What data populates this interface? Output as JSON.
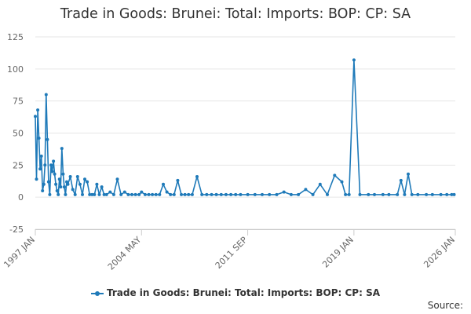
{
  "chart_data": {
    "type": "line",
    "title": "Trade in Goods: Brunei: Total: Imports: BOP: CP: SA",
    "xlabel": "",
    "ylabel": "",
    "ylim": [
      -25,
      125
    ],
    "yticks": [
      -25,
      0,
      25,
      50,
      75,
      100,
      125
    ],
    "xlim": [
      "1997-01",
      "2026-01"
    ],
    "xticks": [
      {
        "date": "1997-01",
        "label": "1997 JAN"
      },
      {
        "date": "2004-05",
        "label": "2004 MAY"
      },
      {
        "date": "2011-09",
        "label": "2011 SEP"
      },
      {
        "date": "2019-01",
        "label": "2019 JAN"
      },
      {
        "date": "2026-01",
        "label": "2026 JAN"
      }
    ],
    "grid": true,
    "legend_position": "bottom",
    "color": "#1f7ab9",
    "series": [
      {
        "name": "Trade in Goods: Brunei: Total: Imports: BOP: CP: SA",
        "x": [
          "1997-01",
          "1997-02",
          "1997-03",
          "1997-04",
          "1997-05",
          "1997-06",
          "1997-07",
          "1997-08",
          "1997-09",
          "1997-10",
          "1997-11",
          "1997-12",
          "1998-01",
          "1998-02",
          "1998-03",
          "1998-04",
          "1998-05",
          "1998-06",
          "1998-07",
          "1998-08",
          "1998-09",
          "1998-10",
          "1998-11",
          "1998-12",
          "1999-01",
          "1999-02",
          "1999-03",
          "1999-04",
          "1999-06",
          "1999-08",
          "1999-10",
          "1999-12",
          "2000-02",
          "2000-04",
          "2000-06",
          "2000-08",
          "2000-10",
          "2000-12",
          "2001-02",
          "2001-04",
          "2001-06",
          "2001-08",
          "2001-10",
          "2001-12",
          "2002-03",
          "2002-06",
          "2002-09",
          "2002-12",
          "2003-03",
          "2003-06",
          "2003-09",
          "2003-12",
          "2004-03",
          "2004-05",
          "2004-08",
          "2004-11",
          "2005-02",
          "2005-05",
          "2005-08",
          "2005-11",
          "2006-02",
          "2006-05",
          "2006-08",
          "2006-11",
          "2007-02",
          "2007-05",
          "2007-08",
          "2007-11",
          "2008-03",
          "2008-07",
          "2008-11",
          "2009-03",
          "2009-07",
          "2009-11",
          "2010-03",
          "2010-07",
          "2010-11",
          "2011-03",
          "2011-09",
          "2012-03",
          "2012-09",
          "2013-03",
          "2013-09",
          "2014-03",
          "2014-09",
          "2015-03",
          "2015-09",
          "2016-03",
          "2016-09",
          "2017-03",
          "2017-09",
          "2018-03",
          "2018-06",
          "2018-09",
          "2019-01",
          "2019-06",
          "2020-01",
          "2020-06",
          "2021-01",
          "2021-06",
          "2022-01",
          "2022-04",
          "2022-07",
          "2022-10",
          "2023-01",
          "2023-06",
          "2024-01",
          "2024-06",
          "2025-01",
          "2025-06",
          "2025-10",
          "2025-12"
        ],
        "y": [
          63,
          14,
          68,
          46,
          22,
          32,
          5,
          10,
          25,
          80,
          45,
          12,
          2,
          25,
          20,
          28,
          18,
          10,
          5,
          2,
          14,
          8,
          38,
          18,
          8,
          2,
          12,
          10,
          16,
          6,
          2,
          16,
          10,
          2,
          14,
          12,
          2,
          2,
          2,
          10,
          2,
          8,
          2,
          2,
          4,
          2,
          14,
          2,
          4,
          2,
          2,
          2,
          2,
          4,
          2,
          2,
          2,
          2,
          2,
          10,
          4,
          2,
          2,
          13,
          2,
          2,
          2,
          2,
          16,
          2,
          2,
          2,
          2,
          2,
          2,
          2,
          2,
          2,
          2,
          2,
          2,
          2,
          2,
          4,
          2,
          2,
          6,
          2,
          10,
          2,
          17,
          12,
          2,
          2,
          107,
          2,
          2,
          2,
          2,
          2,
          2,
          13,
          2,
          18,
          2,
          2,
          2,
          2,
          2,
          2,
          2,
          2
        ]
      }
    ]
  },
  "legend": {
    "label": "Trade in Goods: Brunei: Total: Imports: BOP: CP: SA"
  },
  "source": {
    "label": "Source:"
  }
}
